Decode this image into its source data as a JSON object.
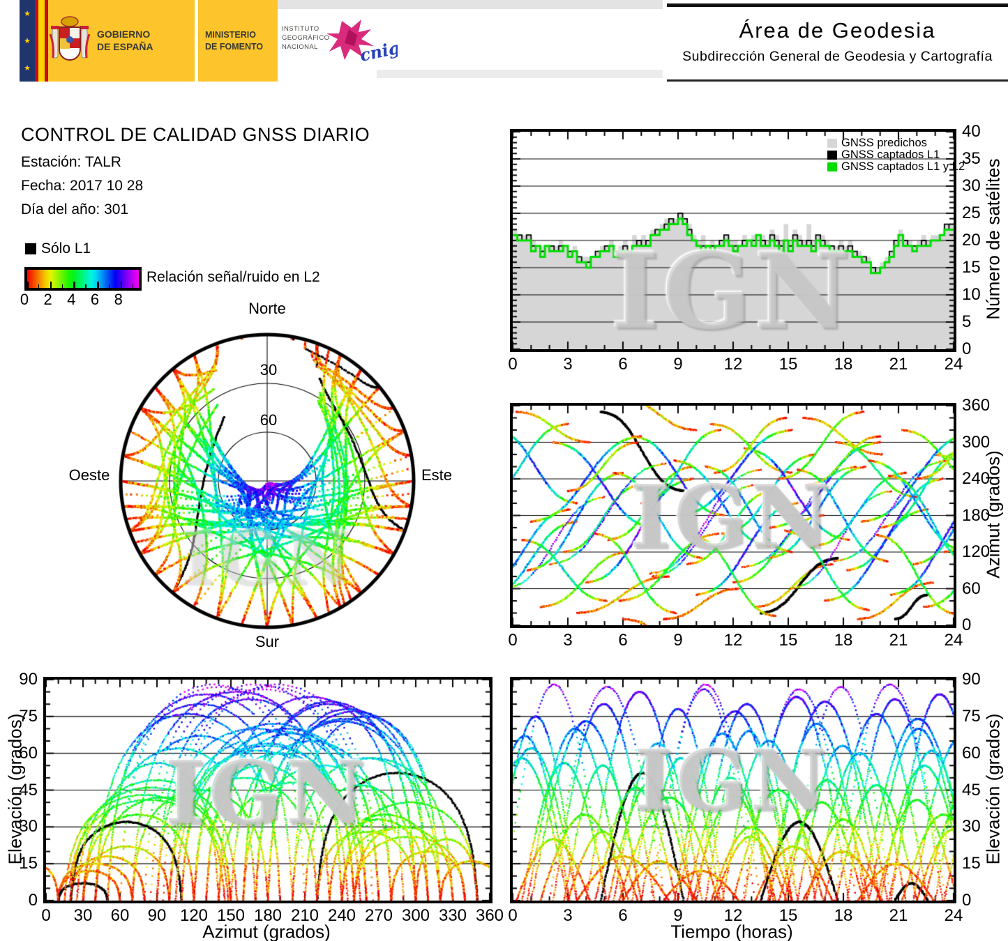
{
  "header": {
    "gobierno_line1": "GOBIERNO",
    "gobierno_line2": "DE ESPAÑA",
    "ministerio_line1": "MINISTERIO",
    "ministerio_line2": "DE FOMENTO",
    "instituto_line1": "INSTITUTO",
    "instituto_line2": "GEOGRÁFICO",
    "instituto_line3": "NACIONAL",
    "cnig_label": "cnig",
    "area_title": "Área de Geodesia",
    "area_subtitle": "Subdirección General de Geodesia y Cartografía"
  },
  "info": {
    "title": "CONTROL DE CALIDAD GNSS DIARIO",
    "station_label": "Estación: TALR",
    "date_label": "Fecha: 2017 10 28",
    "doy_label": "Día del año: 301"
  },
  "legend": {
    "solo_l1": "Sólo L1",
    "colorbar_label": "Relación señal/ruido en L2",
    "colorbar_tick_labels": [
      "0",
      "2",
      "4",
      "6",
      "8"
    ],
    "colorbar_tick_values": [
      0,
      2,
      4,
      6,
      8
    ],
    "colorbar_range": [
      0,
      9.5
    ]
  },
  "skyplot": {
    "north": "Norte",
    "south": "Sur",
    "east": "Este",
    "west": "Oeste",
    "ring_30": "30",
    "ring_60": "60"
  },
  "watermark": "IGN",
  "chart_data": [
    {
      "id": "sat_count",
      "type": "area",
      "xlabel": "",
      "ylabel": "Número de satélites",
      "xlim": [
        0,
        24
      ],
      "ylim": [
        0,
        40
      ],
      "xticks": [
        0,
        3,
        6,
        9,
        12,
        15,
        18,
        21,
        24
      ],
      "yticks": [
        0,
        5,
        10,
        15,
        20,
        25,
        30,
        35,
        40
      ],
      "grid_y": [
        5,
        10,
        15,
        20,
        25,
        30,
        35
      ],
      "step_hours": 0.25,
      "legend": [
        {
          "label": "GNSS predichos",
          "color": "#d6d6d6"
        },
        {
          "label": "GNSS captados L1",
          "color": "#000000"
        },
        {
          "label": "GNSS captados L1 y L2",
          "color": "#00dd00"
        }
      ],
      "series": {
        "predichos": [
          22,
          21,
          21,
          21,
          20,
          19,
          19,
          19,
          19,
          19,
          20,
          19,
          18,
          19,
          17,
          17,
          17,
          17,
          18,
          19,
          19,
          20,
          18,
          19,
          20,
          18,
          21,
          20,
          21,
          20,
          22,
          22,
          23,
          24,
          24,
          24,
          25,
          24,
          23,
          21,
          20,
          21,
          19,
          20,
          19,
          20,
          21,
          20,
          20,
          19,
          21,
          20,
          21,
          21,
          21,
          20,
          22,
          21,
          20,
          23,
          20,
          22,
          21,
          20,
          23,
          20,
          21,
          21,
          20,
          19,
          19,
          20,
          19,
          20,
          18,
          18,
          17,
          17,
          15,
          15,
          16,
          17,
          18,
          20,
          22,
          20,
          20,
          19,
          20,
          21,
          20,
          21,
          21,
          21,
          23,
          23
        ],
        "captados_l1": [
          21,
          21,
          20,
          21,
          19,
          19,
          18,
          19,
          19,
          18,
          19,
          19,
          18,
          18,
          17,
          16,
          16,
          17,
          18,
          18,
          19,
          19,
          18,
          18,
          19,
          18,
          19,
          20,
          19,
          20,
          21,
          22,
          22,
          23,
          24,
          23,
          25,
          24,
          22,
          20,
          19,
          19,
          19,
          19,
          19,
          20,
          21,
          19,
          19,
          19,
          20,
          20,
          20,
          21,
          20,
          19,
          21,
          20,
          19,
          20,
          19,
          21,
          20,
          19,
          20,
          19,
          21,
          20,
          19,
          19,
          18,
          19,
          18,
          19,
          18,
          17,
          17,
          16,
          15,
          14,
          15,
          16,
          18,
          20,
          21,
          20,
          19,
          19,
          19,
          20,
          19,
          20,
          20,
          21,
          23,
          22
        ],
        "captados_l1_l2": [
          21,
          20,
          20,
          20,
          18,
          19,
          17,
          19,
          18,
          18,
          18,
          19,
          17,
          18,
          16,
          16,
          15,
          17,
          17,
          18,
          18,
          19,
          17,
          18,
          18,
          17,
          19,
          19,
          19,
          19,
          21,
          21,
          22,
          22,
          23,
          23,
          24,
          23,
          21,
          20,
          19,
          18,
          19,
          18,
          19,
          19,
          20,
          19,
          18,
          19,
          19,
          20,
          19,
          21,
          19,
          19,
          20,
          19,
          18,
          20,
          18,
          20,
          19,
          19,
          19,
          18,
          20,
          19,
          19,
          18,
          18,
          18,
          18,
          18,
          17,
          17,
          16,
          16,
          14,
          14,
          15,
          16,
          17,
          19,
          21,
          19,
          19,
          18,
          19,
          19,
          19,
          20,
          20,
          21,
          22,
          22
        ]
      }
    },
    {
      "id": "az_time",
      "type": "scatter",
      "xlabel": "",
      "ylabel": "Azimut (grados)",
      "xlim": [
        0,
        24
      ],
      "ylim": [
        0,
        360
      ],
      "xticks": [
        0,
        3,
        6,
        9,
        12,
        15,
        18,
        21,
        24
      ],
      "yticks": [
        0,
        60,
        120,
        180,
        240,
        300,
        360
      ],
      "grid_y": [
        60,
        120,
        180,
        240,
        300
      ],
      "source": "satellite_passes"
    },
    {
      "id": "elev_az",
      "type": "scatter",
      "xlabel": "Azimut (grados)",
      "ylabel": "Elevación (grados)",
      "xlim": [
        0,
        360
      ],
      "ylim": [
        0,
        90
      ],
      "xticks": [
        0,
        30,
        60,
        90,
        120,
        150,
        180,
        210,
        240,
        270,
        300,
        330,
        360
      ],
      "yticks": [
        0,
        15,
        30,
        45,
        60,
        75,
        90
      ],
      "grid_y": [
        15,
        30,
        45,
        60,
        75
      ],
      "source": "satellite_passes"
    },
    {
      "id": "elev_time",
      "type": "scatter",
      "xlabel": "Tiempo (horas)",
      "ylabel": "Elevación (grados)",
      "xlim": [
        0,
        24
      ],
      "ylim": [
        0,
        90
      ],
      "xticks": [
        0,
        3,
        6,
        9,
        12,
        15,
        18,
        21,
        24
      ],
      "yticks": [
        0,
        15,
        30,
        45,
        60,
        75,
        90
      ],
      "grid_y": [
        15,
        30,
        45,
        60,
        75
      ],
      "source": "satellite_passes"
    },
    {
      "id": "skyplot",
      "type": "polar",
      "rings_deg": [
        30,
        60
      ],
      "source": "satellite_passes"
    }
  ],
  "satellite_passes": {
    "format": [
      "start_hour",
      "duration_hours",
      "azimuth_rise_deg",
      "azimuth_set_deg",
      "max_elevation_deg",
      "l1_only"
    ],
    "passes": [
      [
        -1.5,
        5.0,
        45,
        170,
        62,
        0
      ],
      [
        -1.0,
        4.5,
        320,
        200,
        75,
        0
      ],
      [
        -0.5,
        5.5,
        60,
        210,
        88,
        0
      ],
      [
        0.2,
        4.0,
        350,
        300,
        25,
        0
      ],
      [
        0.8,
        5.2,
        90,
        250,
        70,
        0
      ],
      [
        1.5,
        4.8,
        30,
        120,
        35,
        0
      ],
      [
        2.2,
        5.5,
        300,
        160,
        80,
        0
      ],
      [
        2.8,
        4.2,
        120,
        230,
        55,
        0
      ],
      [
        3.5,
        5.0,
        20,
        80,
        18,
        0
      ],
      [
        4.0,
        5.8,
        70,
        240,
        85,
        0
      ],
      [
        4.8,
        4.5,
        350,
        220,
        52,
        1
      ],
      [
        5.2,
        4.6,
        140,
        260,
        48,
        0
      ],
      [
        5.8,
        5.4,
        40,
        150,
        42,
        0
      ],
      [
        6.5,
        5.0,
        310,
        180,
        78,
        0
      ],
      [
        7.0,
        4.3,
        200,
        320,
        58,
        0
      ],
      [
        7.6,
        5.6,
        80,
        230,
        86,
        0
      ],
      [
        8.2,
        4.1,
        10,
        60,
        12,
        0
      ],
      [
        8.8,
        5.2,
        270,
        130,
        68,
        0
      ],
      [
        9.5,
        4.7,
        100,
        220,
        50,
        0
      ],
      [
        10.0,
        5.5,
        50,
        200,
        80,
        0
      ],
      [
        10.8,
        4.4,
        330,
        250,
        30,
        0
      ],
      [
        11.4,
        5.1,
        150,
        280,
        65,
        0
      ],
      [
        12.0,
        4.9,
        70,
        180,
        45,
        0
      ],
      [
        12.6,
        5.7,
        290,
        140,
        83,
        0
      ],
      [
        13.2,
        4.2,
        30,
        100,
        22,
        0
      ],
      [
        13.5,
        4.2,
        20,
        110,
        32,
        1
      ],
      [
        13.9,
        5.3,
        110,
        260,
        72,
        0
      ],
      [
        14.5,
        4.6,
        240,
        350,
        40,
        0
      ],
      [
        15.1,
        5.5,
        60,
        220,
        87,
        0
      ],
      [
        15.8,
        4.3,
        340,
        280,
        20,
        0
      ],
      [
        16.4,
        5.0,
        130,
        250,
        60,
        0
      ],
      [
        17.0,
        5.6,
        40,
        190,
        76,
        0
      ],
      [
        17.6,
        4.4,
        300,
        210,
        47,
        0
      ],
      [
        18.2,
        5.2,
        90,
        240,
        82,
        0
      ],
      [
        18.8,
        4.1,
        10,
        70,
        15,
        0
      ],
      [
        19.4,
        5.4,
        270,
        120,
        70,
        0
      ],
      [
        20.0,
        4.8,
        160,
        290,
        55,
        0
      ],
      [
        20.8,
        1.8,
        10,
        50,
        7,
        1
      ],
      [
        20.6,
        5.3,
        50,
        210,
        84,
        0
      ],
      [
        21.2,
        4.5,
        320,
        230,
        35,
        0
      ],
      [
        21.8,
        5.1,
        100,
        250,
        66,
        0
      ],
      [
        22.4,
        4.7,
        30,
        140,
        44,
        0
      ],
      [
        23.0,
        5.5,
        280,
        150,
        79,
        0
      ],
      [
        23.5,
        4.3,
        120,
        240,
        52,
        0
      ],
      [
        -2.0,
        5.0,
        200,
        330,
        58,
        0
      ],
      [
        1.0,
        6.0,
        170,
        310,
        73,
        0
      ],
      [
        3.0,
        3.8,
        220,
        300,
        28,
        0
      ],
      [
        6.0,
        4.0,
        10,
        -40,
        16,
        0
      ],
      [
        9.0,
        6.2,
        180,
        320,
        77,
        0
      ],
      [
        11.0,
        3.9,
        250,
        340,
        26,
        0
      ],
      [
        14.0,
        6.0,
        160,
        300,
        81,
        0
      ],
      [
        16.0,
        4.0,
        230,
        310,
        33,
        0
      ],
      [
        19.0,
        6.1,
        170,
        315,
        74,
        0
      ],
      [
        22.0,
        4.0,
        240,
        320,
        29,
        0
      ],
      [
        2.0,
        6.3,
        100,
        265,
        87,
        0
      ],
      [
        7.5,
        6.0,
        85,
        255,
        88,
        0
      ],
      [
        12.5,
        6.2,
        95,
        260,
        86,
        0
      ],
      [
        17.5,
        6.1,
        105,
        270,
        88,
        0
      ],
      [
        0.5,
        4.6,
        140,
        40,
        56,
        0
      ],
      [
        5.5,
        4.8,
        250,
        110,
        64,
        0
      ],
      [
        10.5,
        4.7,
        260,
        120,
        69,
        0
      ],
      [
        15.5,
        4.9,
        255,
        105,
        63,
        0
      ],
      [
        20.5,
        4.6,
        245,
        100,
        61,
        0
      ],
      [
        4.5,
        4.4,
        150,
        20,
        46,
        0
      ],
      [
        9.8,
        4.5,
        145,
        15,
        43,
        0
      ],
      [
        14.8,
        4.6,
        155,
        25,
        49,
        0
      ],
      [
        19.8,
        4.4,
        148,
        18,
        41,
        0
      ],
      [
        -1.8,
        4.9,
        60,
        190,
        67,
        0
      ]
    ]
  }
}
